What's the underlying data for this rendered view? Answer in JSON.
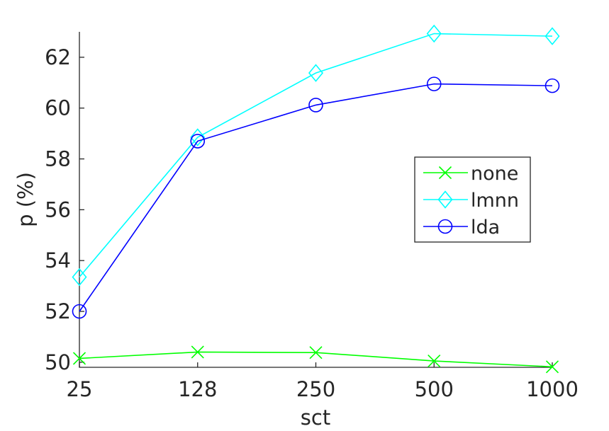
{
  "chart_data": {
    "type": "line",
    "xlabel": "sct",
    "ylabel": "p (%)",
    "categories": [
      "25",
      "128",
      "250",
      "500",
      "1000"
    ],
    "y_ticks": [
      "50",
      "52",
      "54",
      "56",
      "58",
      "60",
      "62"
    ],
    "ylim": [
      49.8,
      63.0
    ],
    "grid": false,
    "legend_position": "right",
    "series": [
      {
        "name": "none",
        "color": "#00ff00",
        "marker": "x",
        "values": [
          50.15,
          50.4,
          50.38,
          50.05,
          49.82
        ]
      },
      {
        "name": "lmnn",
        "color": "#00ffff",
        "marker": "diamond",
        "values": [
          53.35,
          58.85,
          61.38,
          62.93,
          62.83
        ]
      },
      {
        "name": "lda",
        "color": "#0000ff",
        "marker": "circle",
        "values": [
          52.0,
          58.7,
          60.12,
          60.95,
          60.88
        ]
      }
    ]
  }
}
